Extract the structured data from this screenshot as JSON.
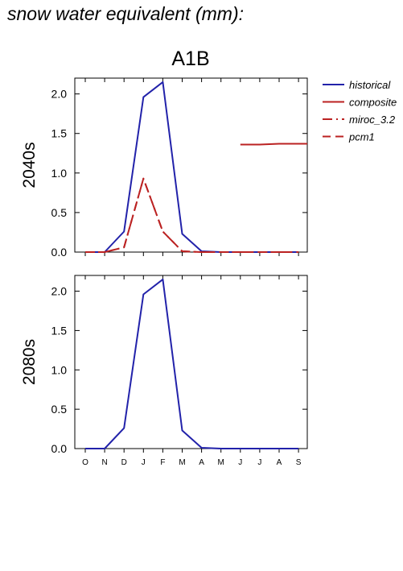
{
  "page": {
    "title": "snow water equivalent (mm):"
  },
  "chart_data": {
    "type": "line",
    "scenario": "A1B",
    "categories": [
      "O",
      "N",
      "D",
      "J",
      "F",
      "M",
      "A",
      "M",
      "J",
      "J",
      "A",
      "S"
    ],
    "ylim": [
      0,
      2.2
    ],
    "yticks": [
      "0.0",
      "0.5",
      "1.0",
      "1.5",
      "2.0"
    ],
    "legend_position": "right",
    "colors": {
      "historical": "#2222aa",
      "scenario": "#bb2222"
    },
    "panels": [
      {
        "label": "2040s",
        "series": [
          {
            "name": "historical",
            "style": "solid",
            "color": "#2222aa",
            "values": [
              0.0,
              0.0,
              0.26,
              1.96,
              2.15,
              0.23,
              0.01,
              0.0,
              0.0,
              0.0,
              0.0,
              0.0
            ]
          },
          {
            "name": "miroc_3.2",
            "style": "dashdot",
            "color": "#bb2222",
            "values": [
              0.0,
              0.0,
              0.06,
              0.93,
              0.26,
              0.01,
              0.0,
              0.0,
              0.0,
              0.0,
              0.0,
              0.0
            ]
          },
          {
            "name": "pcm1",
            "style": "dashed",
            "color": "#bb2222",
            "values": [
              0.0,
              0.0,
              0.06,
              0.93,
              0.26,
              0.01,
              0.0,
              0.0,
              0.0,
              0.0,
              0.0,
              0.0
            ]
          },
          {
            "name": "composite",
            "style": "solid",
            "color": "#bb2222",
            "x_start": 8,
            "values": [
              1.36,
              1.36,
              1.37,
              1.37
            ]
          }
        ]
      },
      {
        "label": "2080s",
        "series": [
          {
            "name": "historical",
            "style": "solid",
            "color": "#2222aa",
            "values": [
              0.0,
              0.0,
              0.26,
              1.96,
              2.15,
              0.23,
              0.01,
              0.0,
              0.0,
              0.0,
              0.0,
              0.0
            ]
          }
        ]
      }
    ],
    "legend": [
      {
        "name": "historical",
        "style": "solid",
        "color": "#2222aa"
      },
      {
        "name": "composite",
        "style": "solid",
        "color": "#bb2222"
      },
      {
        "name": "miroc_3.2",
        "style": "dashdot",
        "color": "#bb2222"
      },
      {
        "name": "pcm1",
        "style": "dashed",
        "color": "#bb2222"
      }
    ]
  }
}
